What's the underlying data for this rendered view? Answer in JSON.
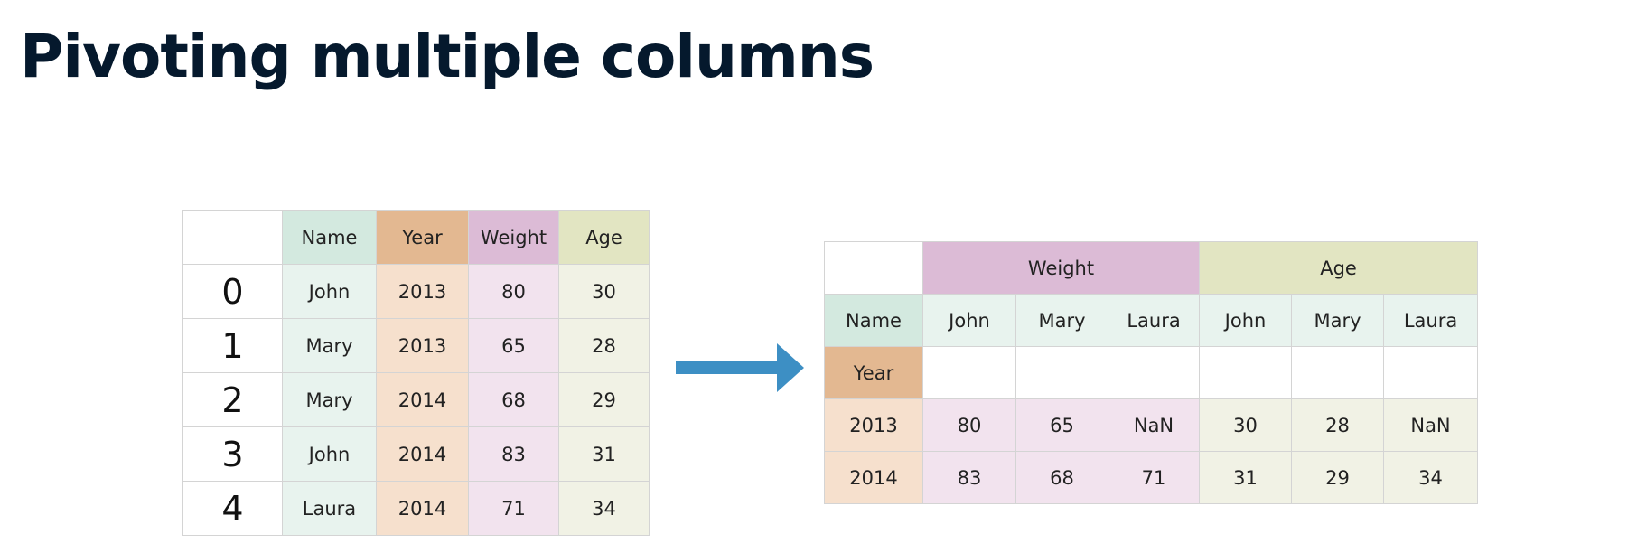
{
  "title": "Pivoting multiple columns",
  "source_table": {
    "headers": [
      "Name",
      "Year",
      "Weight",
      "Age"
    ],
    "rows": [
      {
        "index": "0",
        "name": "John",
        "year": "2013",
        "weight": "80",
        "age": "30"
      },
      {
        "index": "1",
        "name": "Mary",
        "year": "2013",
        "weight": "65",
        "age": "28"
      },
      {
        "index": "2",
        "name": "Mary",
        "year": "2014",
        "weight": "68",
        "age": "29"
      },
      {
        "index": "3",
        "name": "John",
        "year": "2014",
        "weight": "83",
        "age": "31"
      },
      {
        "index": "4",
        "name": "Laura",
        "year": "2014",
        "weight": "71",
        "age": "34"
      }
    ]
  },
  "pivot_table": {
    "groups": [
      "Weight",
      "Age"
    ],
    "name_label": "Name",
    "year_label": "Year",
    "names": [
      "John",
      "Mary",
      "Laura",
      "John",
      "Mary",
      "Laura"
    ],
    "rows": [
      {
        "year": "2013",
        "values": [
          "80",
          "65",
          "NaN",
          "30",
          "28",
          "NaN"
        ]
      },
      {
        "year": "2014",
        "values": [
          "83",
          "68",
          "71",
          "31",
          "29",
          "34"
        ]
      }
    ]
  },
  "colors": {
    "arrow": "#3d8fc4",
    "title": "#05192d"
  }
}
